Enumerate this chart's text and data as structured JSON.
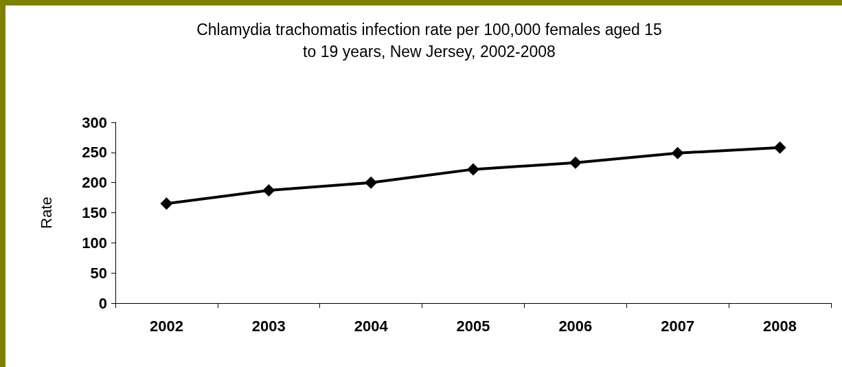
{
  "chart_data": {
    "type": "line",
    "title": "Chlamydia trachomatis infection rate per 100,000 females aged 15\nto 19 years, New Jersey, 2002-2008",
    "ylabel": "Rate",
    "categories": [
      "2002",
      "2003",
      "2004",
      "2005",
      "2006",
      "2007",
      "2008"
    ],
    "series": [
      {
        "color": "#000000",
        "values": [
          165,
          187,
          200,
          222,
          233,
          249,
          258
        ]
      }
    ],
    "ylim": [
      0,
      300
    ],
    "yticks": [
      0,
      50,
      100,
      150,
      200,
      250,
      300
    ],
    "grid": false,
    "marker": "diamond",
    "line_style": "solid"
  }
}
